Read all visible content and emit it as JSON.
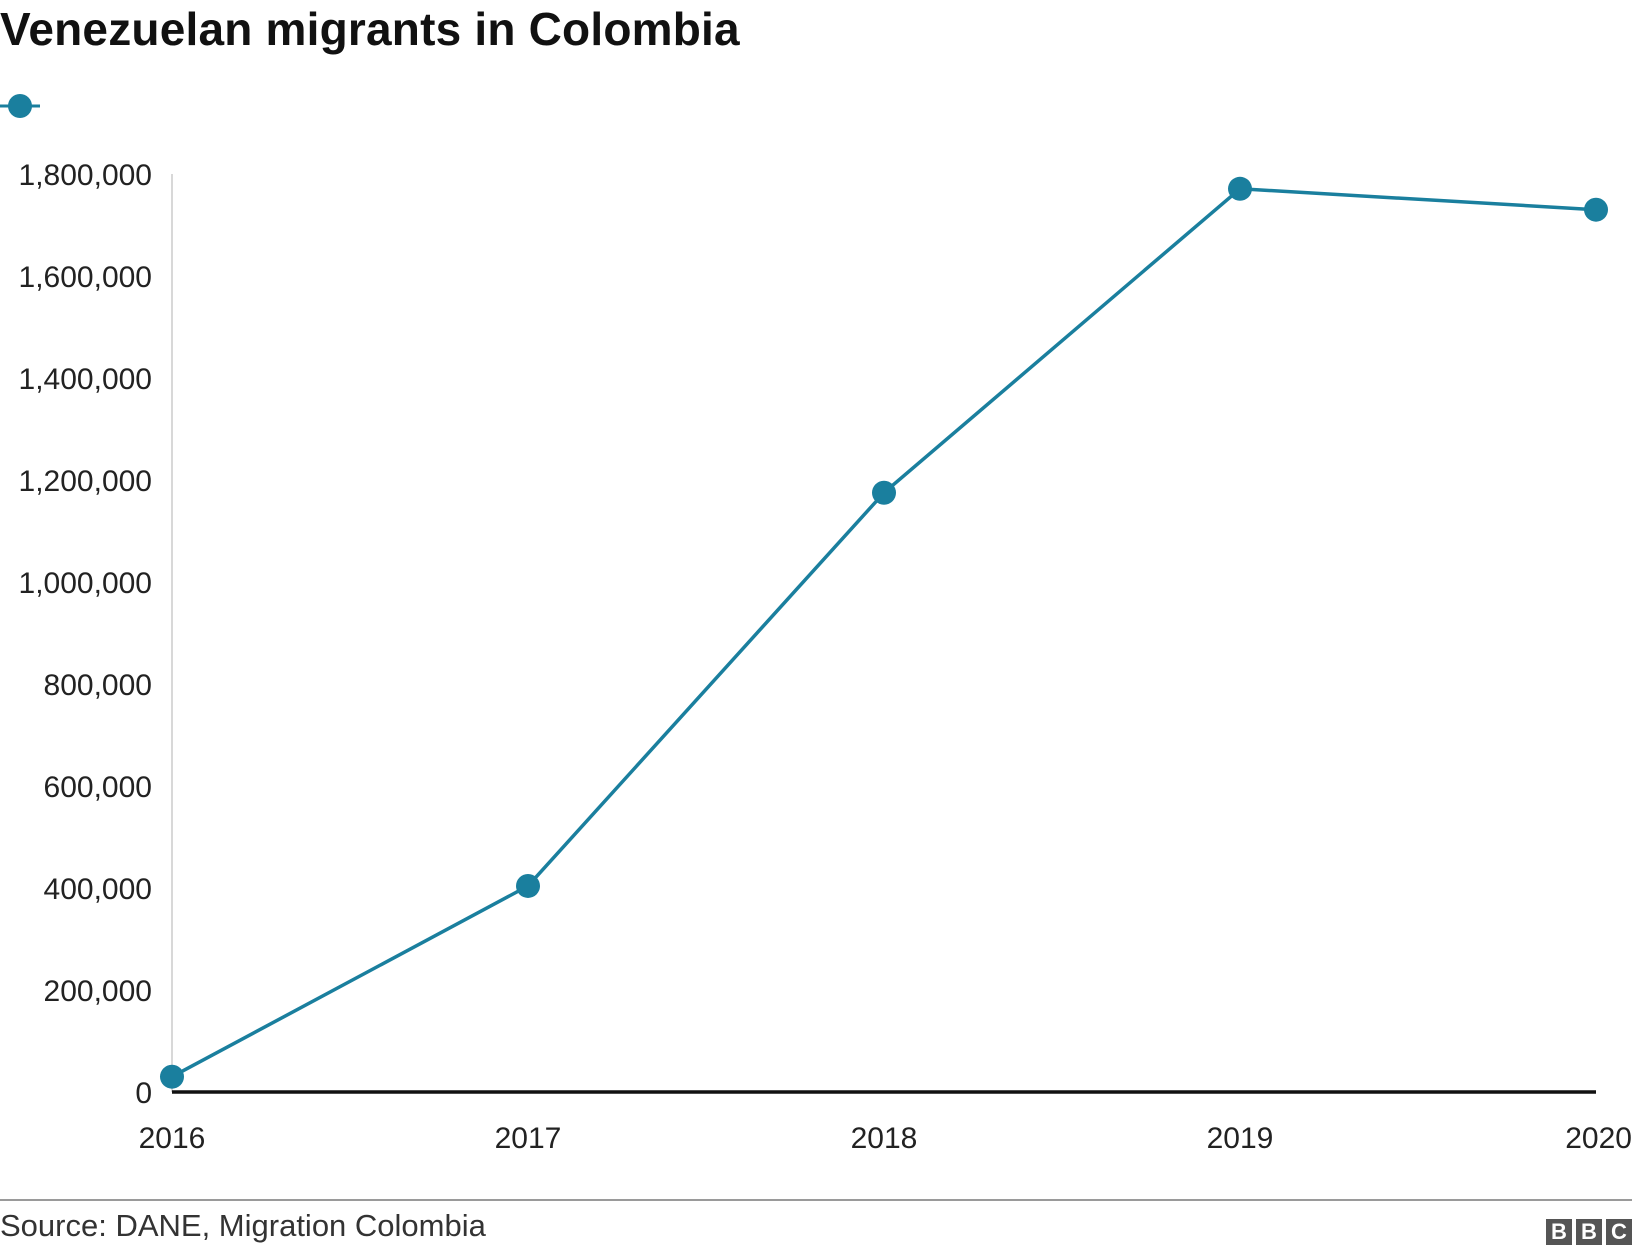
{
  "chart_data": {
    "type": "line",
    "title": "Venezuelan migrants in Colombia",
    "xlabel": "",
    "ylabel": "",
    "x": [
      "2016",
      "2017",
      "2018",
      "2019",
      "2020"
    ],
    "series": [
      {
        "values": [
          30000,
          404000,
          1175000,
          1771000,
          1730000
        ],
        "color": "#1a7f9e"
      }
    ],
    "ylim": [
      0,
      1800000
    ],
    "yticks": [
      0,
      200000,
      400000,
      600000,
      800000,
      1000000,
      1200000,
      1400000,
      1600000,
      1800000
    ],
    "ytick_labels": [
      "0",
      "200,000",
      "400,000",
      "600,000",
      "800,000",
      "1,000,000",
      "1,200,000",
      "1,400,000",
      "1,600,000",
      "1,800,000"
    ],
    "grid": false,
    "legend": "top-left"
  },
  "footer": {
    "source": "Source: DANE, Migration Colombia",
    "logo_letters": [
      "B",
      "B",
      "C"
    ]
  }
}
